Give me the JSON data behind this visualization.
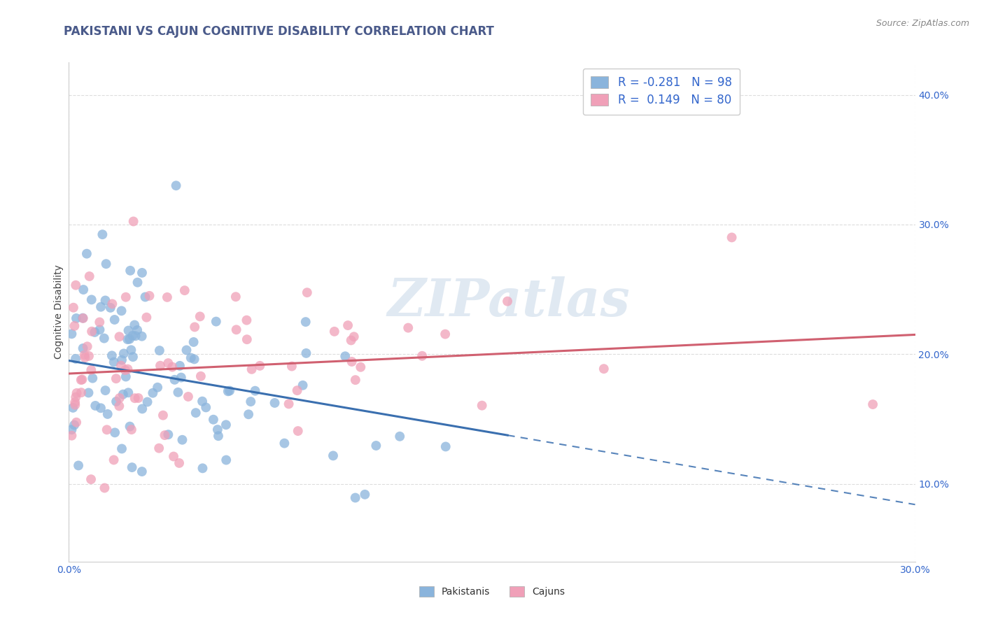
{
  "title": "PAKISTANI VS CAJUN COGNITIVE DISABILITY CORRELATION CHART",
  "source": "Source: ZipAtlas.com",
  "ylabel": "Cognitive Disability",
  "xlim": [
    0.0,
    0.3
  ],
  "ylim": [
    0.04,
    0.425
  ],
  "pakistani_color": "#8AB4DC",
  "cajun_color": "#F0A0B8",
  "trend_pakistani_color": "#3A6FAF",
  "trend_cajun_color": "#D06070",
  "R_pakistani": -0.281,
  "N_pakistani": 98,
  "R_cajun": 0.149,
  "N_cajun": 80,
  "watermark": "ZIPatlas",
  "background_color": "#FFFFFF",
  "grid_color": "#CCCCCC",
  "title_color": "#4A5A8A",
  "source_color": "#888888",
  "axis_label_color": "#444444",
  "tick_color": "#3366CC"
}
